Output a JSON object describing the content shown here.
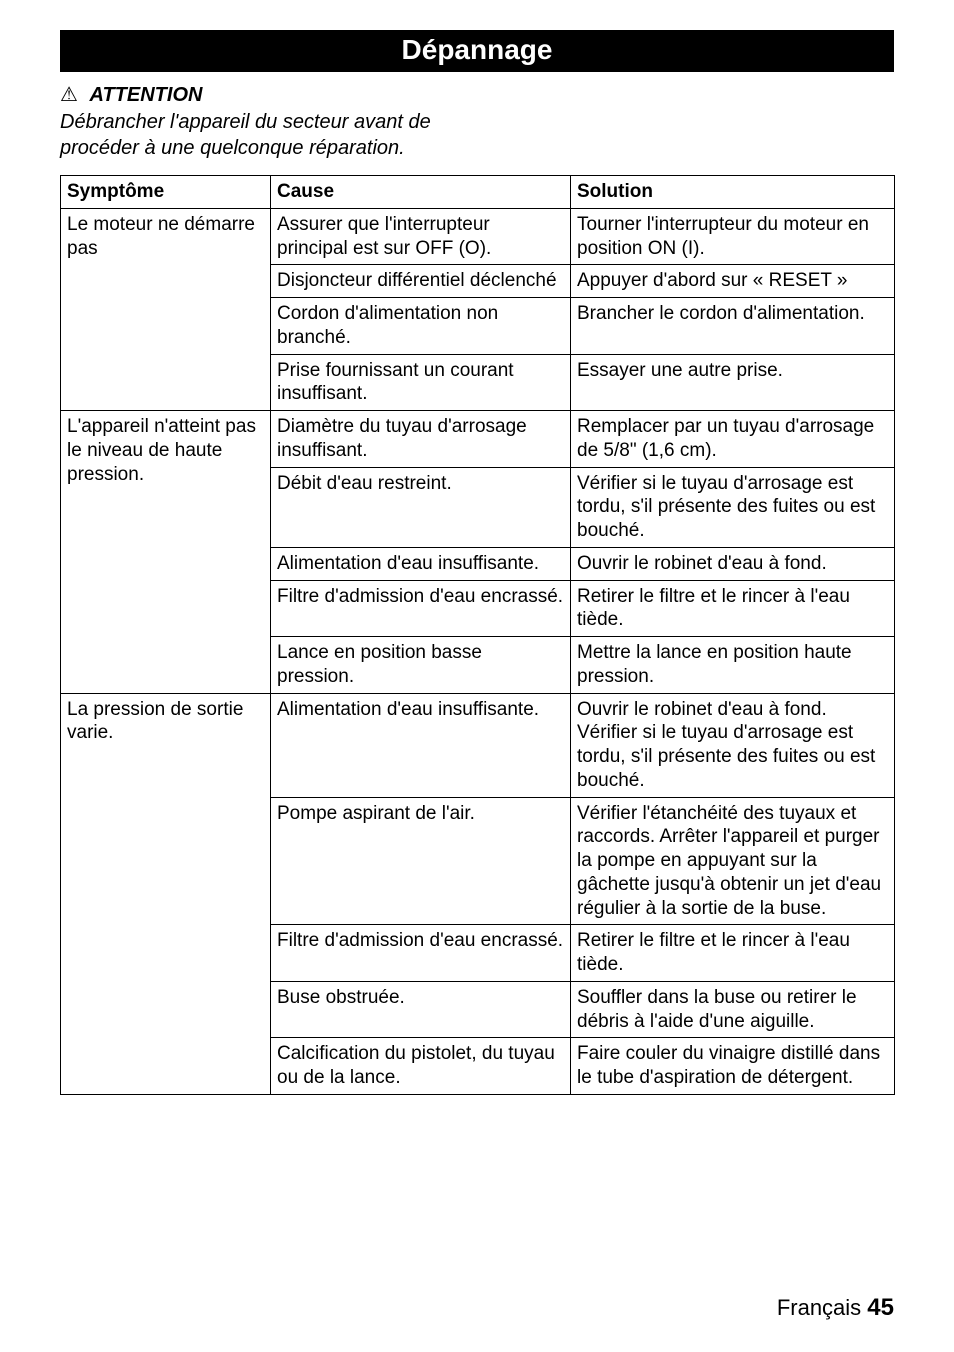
{
  "title": "Dépannage",
  "attention": {
    "symbol": "⚠",
    "label": "ATTENTION",
    "text": "Débrancher l'appareil du secteur avant de procéder à une quelconque réparation."
  },
  "table": {
    "headers": {
      "symptom": "Symptôme",
      "cause": "Cause",
      "solution": "Solution"
    },
    "rows": [
      {
        "symptom": "Le moteur ne démarre pas",
        "symptom_rowspan": 4,
        "items": [
          {
            "cause": "Assurer que l'interrupteur principal est sur OFF (O).",
            "solution": "Tourner l'interrupteur du moteur en position ON (I)."
          },
          {
            "cause": "Disjoncteur différentiel déclenché",
            "solution": "Appuyer d'abord sur « RESET »"
          },
          {
            "cause": "Cordon d'alimentation non branché.",
            "solution": "Brancher le cordon d'alimentation."
          },
          {
            "cause": "Prise fournissant un courant insuffisant.",
            "solution": "Essayer une autre prise."
          }
        ]
      },
      {
        "symptom": "L'appareil n'atteint pas le niveau de haute pression.",
        "symptom_rowspan": 5,
        "items": [
          {
            "cause": "Diamètre du tuyau d'arrosage insuffisant.",
            "solution": "Remplacer par un tuyau d'arrosage de 5/8\" (1,6 cm)."
          },
          {
            "cause": "Débit d'eau restreint.",
            "solution": "Vérifier si le tuyau d'arrosage est tordu, s'il présente des fuites ou est bouché."
          },
          {
            "cause": "Alimentation d'eau insuffisante.",
            "solution": "Ouvrir le robinet d'eau à fond."
          },
          {
            "cause": "Filtre d'admission d'eau encrassé.",
            "solution": "Retirer le filtre et le rincer à l'eau tiède."
          },
          {
            "cause": "Lance en position basse pression.",
            "solution": "Mettre la lance en position haute pression."
          }
        ]
      },
      {
        "symptom": "La pression de sortie varie.",
        "symptom_rowspan": 5,
        "items": [
          {
            "cause": "Alimentation d'eau insuffisante.",
            "solution": "Ouvrir le robinet d'eau à fond. Vérifier si le tuyau d'arrosage est tordu, s'il présente des fuites ou est bouché."
          },
          {
            "cause": "Pompe aspirant de l'air.",
            "solution": "Vérifier l'étanchéité des tuyaux et raccords. Arrêter l'appareil et purger la pompe en appuyant sur la gâchette jusqu'à obtenir un jet d'eau régulier à la sortie de la buse."
          },
          {
            "cause": "Filtre d'admission d'eau encrassé.",
            "solution": "Retirer le filtre et le rincer à l'eau tiède."
          },
          {
            "cause": "Buse obstruée.",
            "solution": "Souffler dans la buse ou retirer le débris à l'aide d'une aiguille."
          },
          {
            "cause": "Calcification du pistolet, du tuyau ou de la lance.",
            "solution": "Faire couler du vinaigre distillé dans le tube d'aspiration de détergent."
          }
        ]
      }
    ]
  },
  "footer": {
    "language": "Français",
    "page": "45"
  }
}
